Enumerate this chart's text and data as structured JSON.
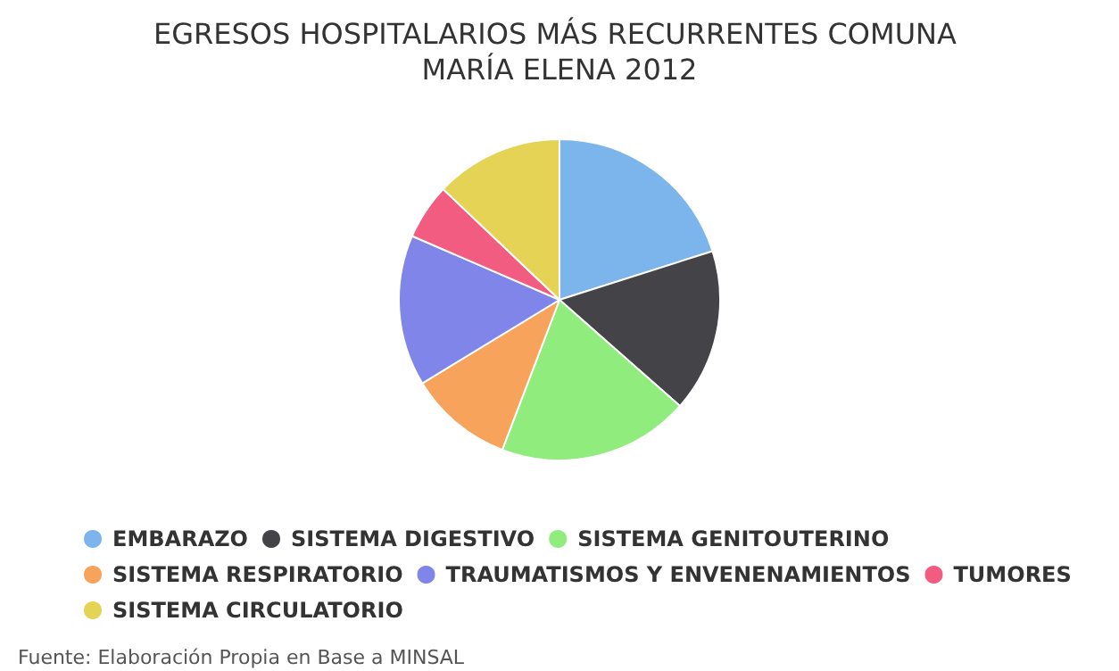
{
  "chart_data": {
    "type": "pie",
    "title": "EGRESOS HOSPITALARIOS MÁS RECURRENTES COMUNA MARÍA ELENA 2012",
    "categories": [
      "EMBARAZO",
      "SISTEMA DIGESTIVO",
      "SISTEMA GENITOUTERINO",
      "SISTEMA RESPIRATORIO",
      "TRAUMATISMOS Y ENVENENAMIENTOS",
      "TUMORES",
      "SISTEMA CIRCULATORIO"
    ],
    "values": [
      20.1,
      16.4,
      19.3,
      10.5,
      15.2,
      5.6,
      12.9
    ],
    "colors": [
      "#7cb5ec",
      "#434348",
      "#90ed7d",
      "#f7a35c",
      "#8085e9",
      "#f15c80",
      "#e4d354"
    ],
    "legend": "bottom",
    "annotations": [
      "Fuente: Elaboración Propia en Base a MINSAL"
    ]
  }
}
